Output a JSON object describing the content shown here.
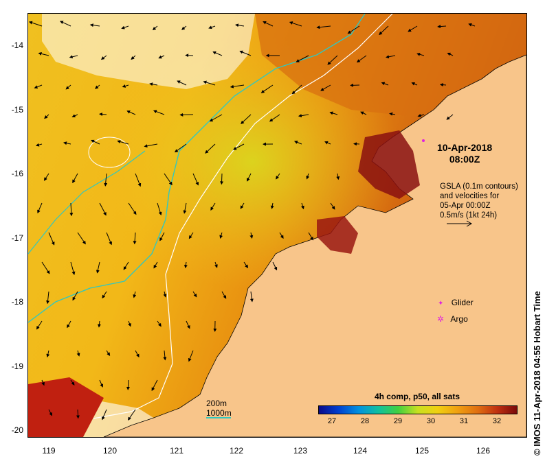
{
  "y_ticks": [
    "-14",
    "-15",
    "-16",
    "-17",
    "-18",
    "-19",
    "-20"
  ],
  "x_ticks": [
    "119",
    "120",
    "121",
    "122",
    "123",
    "124",
    "125",
    "126"
  ],
  "timestamp": {
    "line1": "10-Apr-2018",
    "line2": "08:00Z"
  },
  "annotation": [
    "GSLA (0.1m contours)",
    "and velocities for",
    "05-Apr 00:00Z",
    "0.5m/s (1kt 24h)"
  ],
  "legend": {
    "glider": "Glider",
    "argo": "Argo",
    "glider_color": "#e020e0",
    "argo_color": "#e020e0"
  },
  "isobaths": {
    "label_200": "200m",
    "label_1000": "1000m",
    "color_200": "#ffffff",
    "color_1000": "#30c8c0"
  },
  "colorbar": {
    "title": "4h comp, p50, all sats",
    "ticks": [
      "27",
      "28",
      "29",
      "30",
      "31",
      "32"
    ],
    "colors": [
      "#0a0a8a",
      "#0040d0",
      "#0090e0",
      "#10c0a0",
      "#40d040",
      "#c8e020",
      "#f0d010",
      "#f0a010",
      "#e07010",
      "#c03010",
      "#7a0a0a"
    ]
  },
  "credit": "© IMOS 11-Apr-2018 04:55 Hobart Time",
  "land_color": "#f8c58a"
}
